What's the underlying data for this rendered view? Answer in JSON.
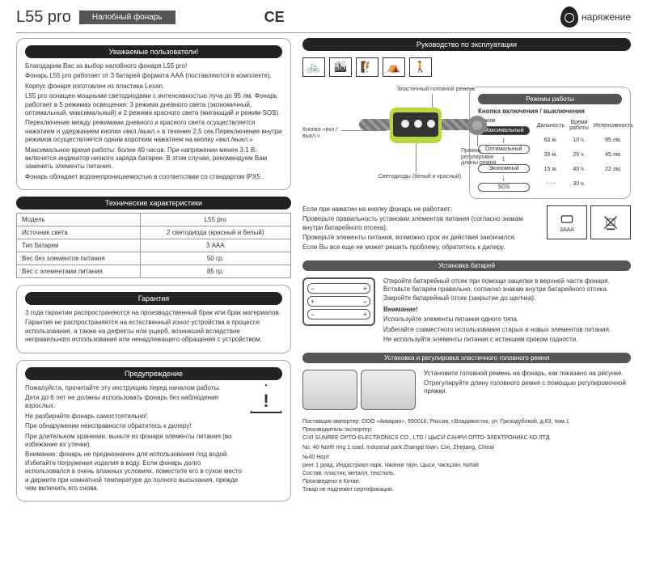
{
  "header": {
    "model": "L55 pro",
    "subtitle": "Налобный фонарь",
    "ce": "CE",
    "brand": "наряжение"
  },
  "left": {
    "intro": {
      "title": "Уважаемые пользователи!",
      "p1": "Благодарим Вас за выбор налобного фонаря L55 pro!",
      "p2": "Фонарь L55 pro работает от 3 батарей формата ААА (поставляются в комплекте).",
      "p3": "Корпус фонаря изготовлен из пластика Lexan.",
      "p4": "L55 pro оснащен мощными светодиодами с интенсивностью луча до 95 лм. Фонарь работает в 5 режимах освещения: 3 режима дневного света (экономичный, оптимальный, максимальный) и 2 режима красного света (мигающий и режим-SOS).",
      "p5": "Переключение между режимами дневного и красного света осуществляется нажатием и удержанием кнопки «вкл./выкл.» в течение 2,5 сек.Переключение внутри режимов осуществляется одним коротким нажатием на кнопку «вкл./выкл.»",
      "p6": "Максимальное время работы: более 40 часов. При напряжении менее 3.1 В. включится индикатор низкого заряда батареи. В этом случае, рекомендуем Вам заменить элементы питания.",
      "p7": "Фонарь обладает водонепроницаемостью в соответствии со стандартом IPX5 ."
    },
    "specs": {
      "title": "Технические характеристики",
      "rows": [
        [
          "Модель",
          "L55 pro"
        ],
        [
          "Источник света",
          "2 светодиода (красный и белый)"
        ],
        [
          "Тип батареи",
          "3 ААА"
        ],
        [
          "Вес без элементов питания",
          "50 гр."
        ],
        [
          "Вес с элементами питания",
          "85 гр."
        ]
      ]
    },
    "warranty": {
      "title": "Гарантия",
      "p1": "3 года гарантии распространяются на производственный брак или брак материалов.",
      "p2": "Гарантия не распространяется на естественный износ устройства в процессе использования, а также на дефекты или ущерб, возникший вследствие неправильного использования или ненадлежащего обращения с устройством."
    },
    "warning": {
      "title": "Предупреждение",
      "p1": "Пожалуйста, прочитайте эту инструкцию перед началом работы.",
      "p2": "Дети до 6 лет не должны использовать фонарь без наблюдения взрослых.",
      "p3": "Не разбирайте фонарь самостоятельно!",
      "p4": "При обнаружении неисправности обратитесь к дилеру!",
      "p5": "При длительном хранении, выньте из фонаря элементы питания (во избежание их утечки).",
      "p6": "Внимание: фонарь не предназначен для использования под водой. Избегайте погружения изделия в воду. Если фонарь долго использовался в очень влажных условиях, поместите его в сухое место и держите при комнатной температуре до полного высыхания, прежде чем включить его снова."
    }
  },
  "right": {
    "manual": {
      "title": "Руководство по эксплуатации",
      "labels": {
        "button": "Кнопка «вкл./выкл.»",
        "strap": "Эластичный головной ремень",
        "leds": "Светодиоды (белый и красный)",
        "buckle": "Пряжка регулировки длины ремня"
      },
      "modes": {
        "title": "Режимы работы",
        "switch": "Кнопка включения / выключения",
        "hdr_mode": "Режим",
        "hdr_dist": "Дальность",
        "hdr_time": "Время работы",
        "hdr_lm": "Интенсивность",
        "states": [
          "Максимальный",
          "Оптимальный",
          "Экономный",
          "SOS"
        ],
        "rows": [
          [
            "60 м.",
            "10 ч.",
            "95 лм."
          ],
          [
            "35 м.",
            "25 ч.",
            "45 лм."
          ],
          [
            "15 м.",
            "40 ч.",
            "22 лм."
          ],
          [
            "- - -",
            "30 ч.",
            ""
          ]
        ]
      },
      "trouble": {
        "p1": "Если при нажатии на кнопку фонарь не работает:",
        "p2": "Проверьте правильность установки элементов питания (согласно знакам внутри батарейного отсека).",
        "p3": "Проверьте элементы питания, возможно срок их действия закончился.",
        "p4": "Если Вы все еще не может решить проблему, обратитесь к дилеру."
      },
      "cert_label": "3ААА"
    },
    "battery": {
      "title": "Установка батарей",
      "p1": "Откройте батарейный отсек при помощи защелки в верхней части фонаря. Вставьте батареи правильно, согласно знакам внутри батарейного отсека. Закройте батарейный отсек (закрытие до щелчка).",
      "warn_t": "Внимание!",
      "p2": "Используйте элементы питания одного типа.",
      "p3": "Избегайте совместного использования старых и новых элементов питания.",
      "p4": "Не используйте элементы питания с истекшим сроком годности."
    },
    "strap": {
      "title": "Установка и регулировка эластичного головного ремня",
      "p1": "Установите головной ремень на фонарь, как показано на рисунке.",
      "p2": "Отрегулируйте длину головного ремня с помощью регулировочной пряжки."
    },
    "footer": {
      "p1": "Поставщик-импортер: ООО «Акварин», 690016, Россия, г.Владивосток, ул. Гризодубовой, д.63, пом.1",
      "p2": "Производитель-экспортер:",
      "p3": "CIXI SUNREE OPTO-ELECTRONICS CO., LTD / ЦЫСИ САНРИ ОПТО-ЭЛЕКТРОНИКС КО.ЛТД",
      "p4": "No. 40 North ring 1 road, Industrial park Zhangqi town, Cixi, Zhejiang, China/",
      "p5": "№40 Норт",
      "p6": "ринг 1 роад, Индастриал парк, Чжанки таун, Цыси, Чжэцзян, Китай",
      "p7": "Состав: пластик, металл, текстиль.",
      "p8": "Произведено в Китае.",
      "p9": "Товар не подлежит сертификации."
    }
  }
}
